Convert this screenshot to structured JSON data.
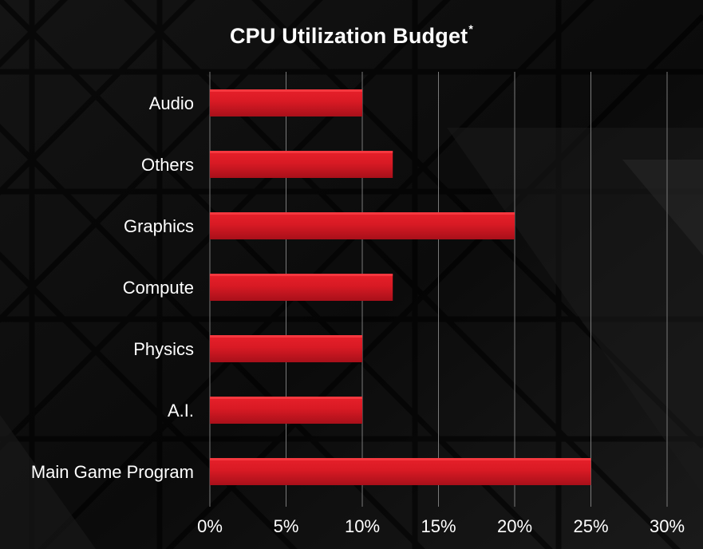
{
  "chart_data": {
    "type": "bar",
    "orientation": "horizontal",
    "title": "CPU Utilization Budget",
    "title_mark": "*",
    "categories": [
      "Audio",
      "Others",
      "Graphics",
      "Compute",
      "Physics",
      "A.I.",
      "Main Game Program"
    ],
    "values": [
      10,
      12,
      20,
      12,
      10,
      10,
      25
    ],
    "unit": "%",
    "xlim": [
      0,
      30
    ],
    "xticks": [
      "0%",
      "5%",
      "10%",
      "15%",
      "20%",
      "25%",
      "30%"
    ],
    "xtick_values": [
      0,
      5,
      10,
      15,
      20,
      25,
      30
    ],
    "grid": "vertical",
    "legend": "none",
    "colors": {
      "bar_top": "#e8202a",
      "bar_bottom": "#a8101a",
      "text": "#ffffff",
      "grid": "#7a7a7a",
      "background": "#0c0c0c"
    }
  }
}
